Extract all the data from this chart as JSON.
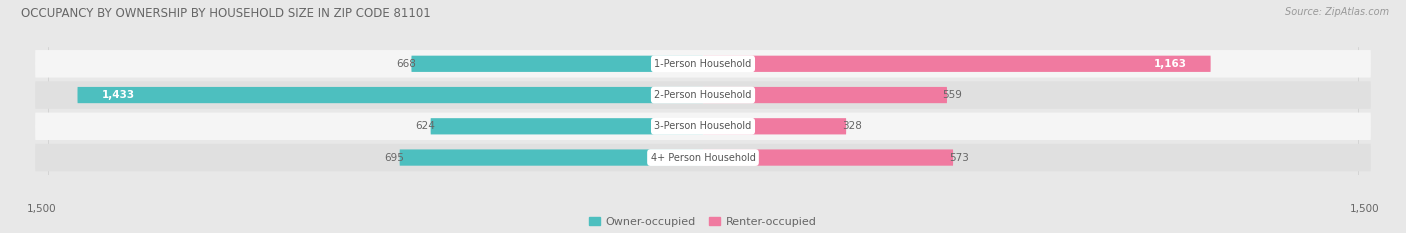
{
  "title": "OCCUPANCY BY OWNERSHIP BY HOUSEHOLD SIZE IN ZIP CODE 81101",
  "source": "Source: ZipAtlas.com",
  "categories": [
    "1-Person Household",
    "2-Person Household",
    "3-Person Household",
    "4+ Person Household"
  ],
  "owner_values": [
    668,
    1433,
    624,
    695
  ],
  "renter_values": [
    1163,
    559,
    328,
    573
  ],
  "owner_color": "#4dbfbf",
  "renter_color": "#f07aa0",
  "owner_color_light": "#a8dede",
  "renter_color_light": "#f9c0d2",
  "axis_max": 1500,
  "bar_height": 0.52,
  "bg_color": "#e8e8e8",
  "row_bg_light": "#f5f5f5",
  "row_bg_dark": "#e0e0e0",
  "label_color": "#666666",
  "title_color": "#666666",
  "source_color": "#999999",
  "legend_owner": "Owner-occupied",
  "legend_renter": "Renter-occupied"
}
